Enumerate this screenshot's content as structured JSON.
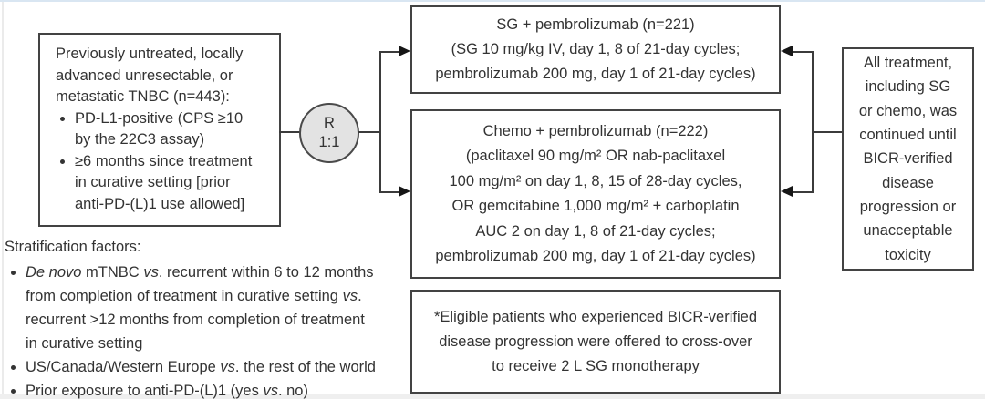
{
  "figure_colors": {
    "box_border": "#434343",
    "connector_line": "#3b3b3b",
    "arrowhead": "#161616",
    "circle_fill": "#e3e3e3",
    "text": "#333333"
  },
  "eligibility_box": {
    "intro": "Previously untreated, locally\nadvanced unresectable, or\nmetastatic TNBC (n=443):",
    "bullets": [
      "PD-L1-positive (CPS ≥10\nby the 22C3 assay)",
      "≥6 months since treatment\nin curative setting [prior\nanti-PD-(L)1 use allowed]"
    ]
  },
  "randomization": {
    "letter": "R",
    "ratio": "1:1"
  },
  "arm_sg_box": {
    "text": "SG + pembrolizumab (n=221)\n(SG 10 mg/kg IV, day 1, 8 of 21-day cycles;\npembrolizumab 200 mg, day 1 of 21-day cycles)"
  },
  "arm_chemo_box": {
    "text": "Chemo + pembrolizumab (n=222)\n(paclitaxel 90 mg/m² OR nab-paclitaxel\n100 mg/m² on day 1, 8, 15 of 28-day cycles,\nOR gemcitabine 1,000 mg/m² + carboplatin\nAUC 2 on day 1, 8 of 21-day cycles;\npembrolizumab 200 mg, day 1 of 21-day cycles)"
  },
  "treatment_duration_box": {
    "text": "All treatment,\nincluding SG\nor chemo, was\ncontinued until\nBICR-verified\ndisease\nprogression or\nunacceptable\ntoxicity"
  },
  "crossover_note_box": {
    "text": "*Eligible patients who experienced BICR-verified\ndisease progression were offered to cross-over\nto receive 2 L SG monotherapy"
  },
  "stratification": {
    "title": "Stratification factors:",
    "bullets_html": [
      "<i>De novo</i> mTNBC <i>vs</i>. recurrent within 6 to 12 months<br>from completion of treatment in curative setting <i>vs</i>.<br>recurrent &gt;12 months from completion of treatment<br>in curative setting",
      "US/Canada/Western Europe <i>vs</i>. the rest of the world",
      "Prior exposure to anti-PD-(L)1 (yes <i>vs</i>. no)"
    ]
  }
}
